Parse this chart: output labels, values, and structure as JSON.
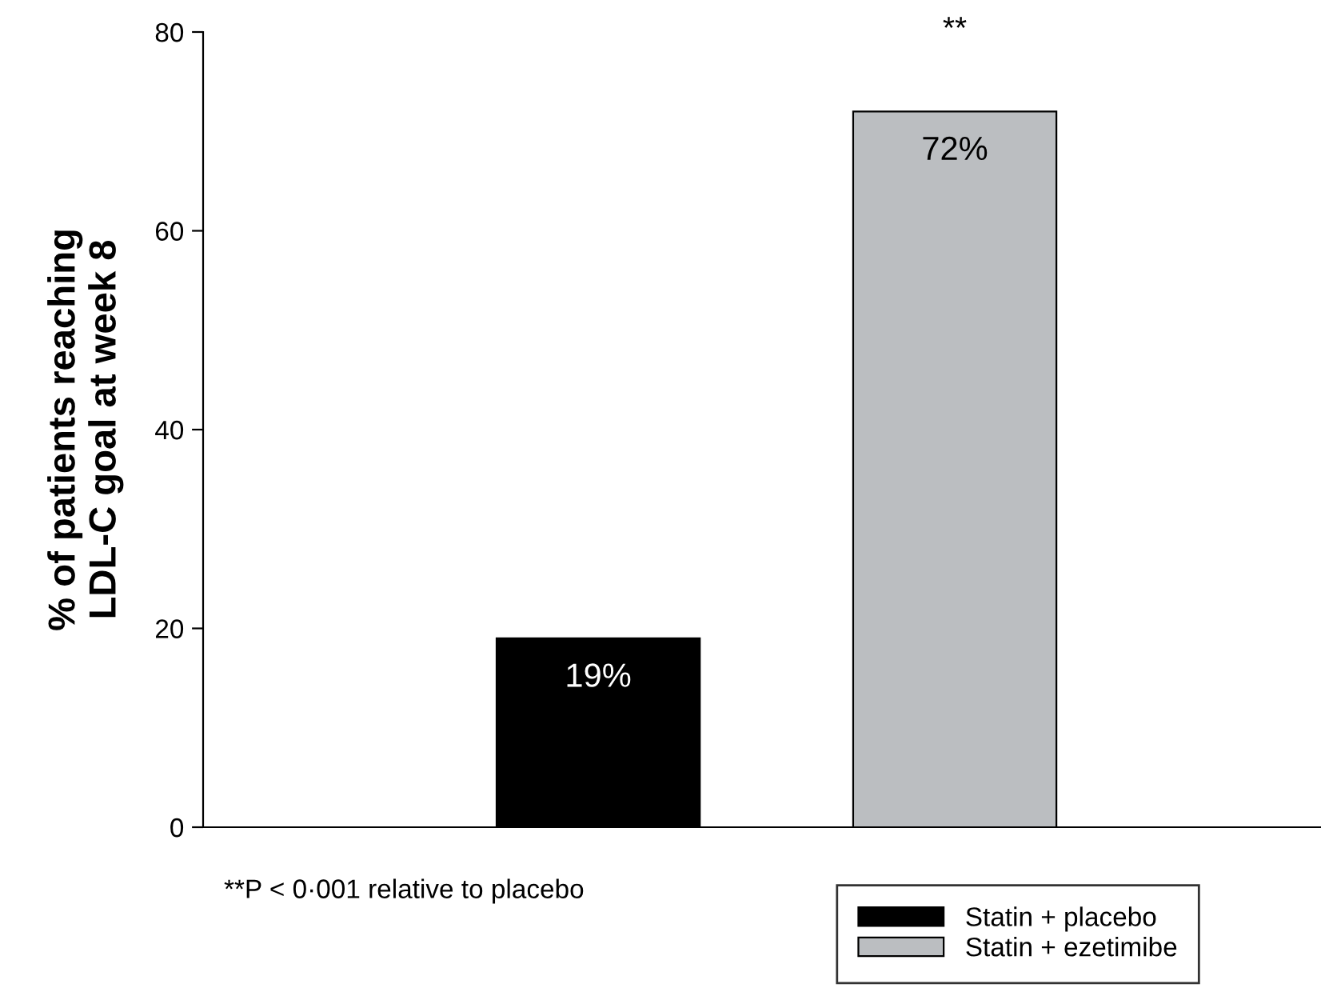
{
  "chart_data": {
    "type": "bar",
    "ylabel": "% of patients reaching\nLDL-C goal at week 8",
    "categories": [
      null,
      null
    ],
    "series": [
      {
        "name": "Statin + placebo",
        "color": "#000000",
        "values": [
          19,
          null
        ],
        "value_labels": [
          "19%",
          null
        ]
      },
      {
        "name": "Statin + ezetimibe",
        "color": "#bbbec1",
        "values": [
          null,
          72
        ],
        "value_labels": [
          null,
          "72%"
        ]
      }
    ],
    "ylim": [
      0,
      80
    ],
    "yticks": [
      0,
      20,
      40,
      60,
      80
    ],
    "annotations": [
      {
        "text": "**",
        "y": 72
      },
      "**P < 0·001 relative to placebo"
    ],
    "legend": "bottom right",
    "tick_labels": "y",
    "grid": false
  }
}
